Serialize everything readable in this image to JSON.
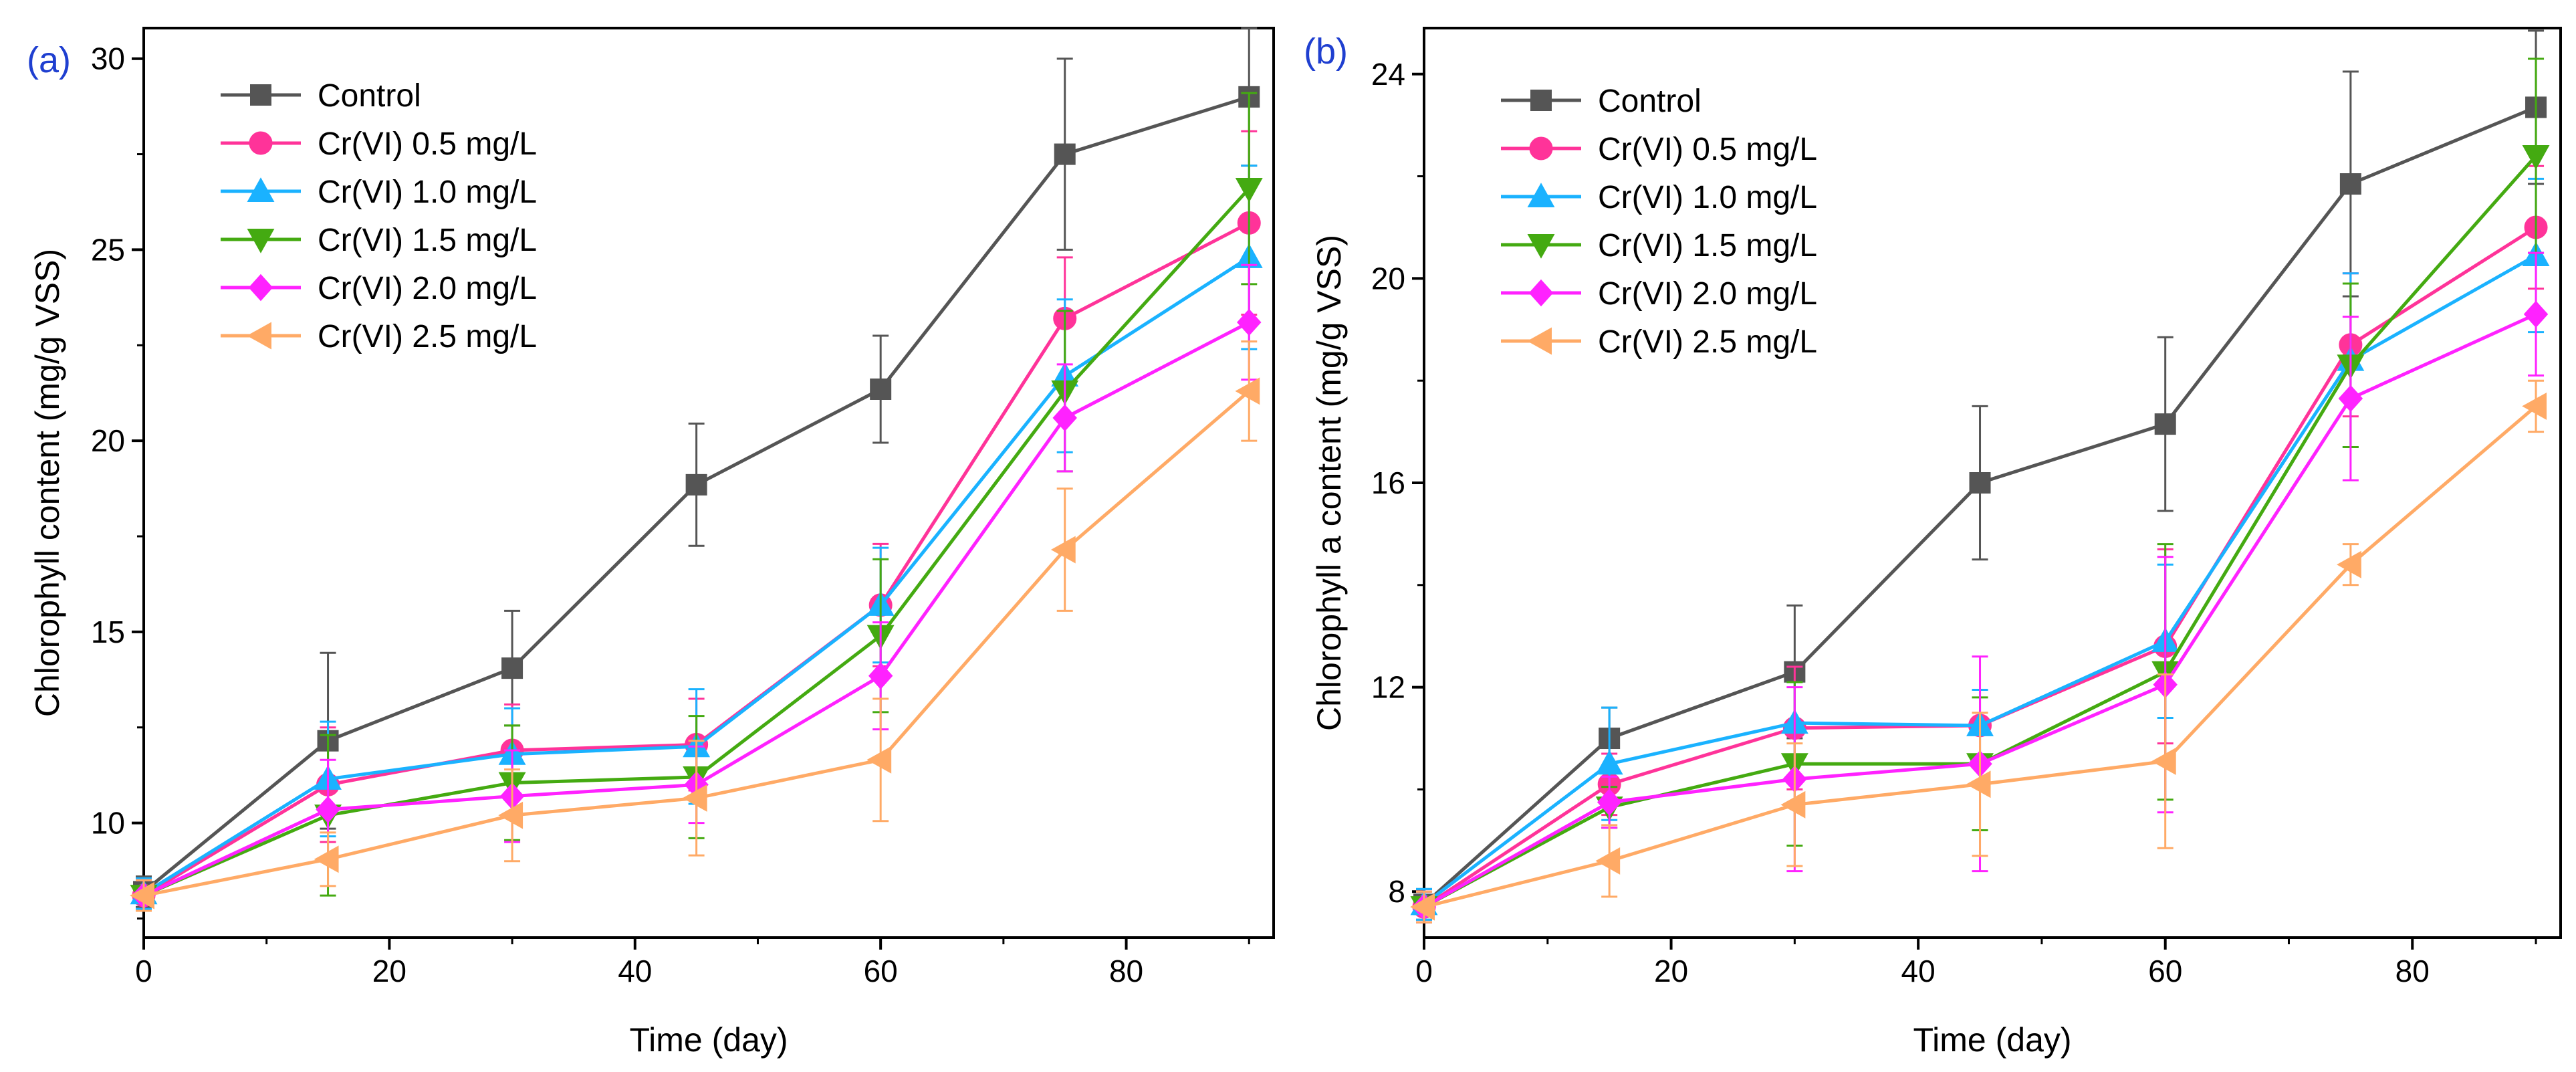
{
  "chart_data": [
    {
      "type": "line",
      "panel_label": "(a)",
      "title": "",
      "xlabel": "Time (day)",
      "ylabel": "Chlorophyll content (mg/g VSS)",
      "xlim": [
        0,
        92
      ],
      "ylim": [
        7,
        30.8
      ],
      "x_ticks": [
        0,
        20,
        40,
        60,
        80
      ],
      "x_tick_labels": [
        "0",
        "20",
        "40",
        "60",
        "80"
      ],
      "y_ticks": [
        10,
        15,
        20,
        25,
        30
      ],
      "y_tick_labels": [
        "10",
        "15",
        "20",
        "25",
        "30"
      ],
      "x": [
        0,
        15,
        30,
        45,
        60,
        75,
        90
      ],
      "legend_position": "top-left",
      "series": [
        {
          "name": "Control",
          "color": "#555555",
          "marker": "square",
          "values": [
            8.2,
            12.15,
            14.05,
            18.85,
            21.35,
            27.5,
            29.0
          ],
          "errors": [
            0.4,
            2.3,
            1.5,
            1.6,
            1.4,
            2.5,
            1.8
          ]
        },
        {
          "name": "Cr(VI) 0.5 mg/L",
          "color": "#ff3399",
          "marker": "circle",
          "values": [
            8.1,
            11.0,
            11.9,
            12.05,
            15.7,
            23.2,
            25.7
          ],
          "errors": [
            0.4,
            1.5,
            1.2,
            1.2,
            1.6,
            1.6,
            2.4
          ]
        },
        {
          "name": "Cr(VI) 1.0 mg/L",
          "color": "#1ab2ff",
          "marker": "triangle-up",
          "values": [
            8.15,
            11.15,
            11.8,
            12.0,
            15.7,
            21.7,
            24.8
          ],
          "errors": [
            0.4,
            1.5,
            1.2,
            1.5,
            1.5,
            2.0,
            2.4
          ]
        },
        {
          "name": "Cr(VI) 1.5 mg/L",
          "color": "#44aa11",
          "marker": "triangle-down",
          "values": [
            8.1,
            10.2,
            11.05,
            11.2,
            14.9,
            21.3,
            26.6
          ],
          "errors": [
            0.4,
            2.1,
            1.5,
            1.6,
            2.0,
            2.1,
            2.5
          ]
        },
        {
          "name": "Cr(VI) 2.0 mg/L",
          "color": "#ff22ff",
          "marker": "diamond",
          "values": [
            8.1,
            10.35,
            10.7,
            11.0,
            13.85,
            20.6,
            23.1
          ],
          "errors": [
            0.4,
            1.3,
            1.2,
            1.0,
            1.4,
            1.4,
            1.5
          ]
        },
        {
          "name": "Cr(VI) 2.5 mg/L",
          "color": "#ffaa66",
          "marker": "triangle-left",
          "values": [
            8.1,
            9.05,
            10.2,
            10.65,
            11.65,
            17.15,
            21.3
          ],
          "errors": [
            0.4,
            0.7,
            1.2,
            1.5,
            1.6,
            1.6,
            1.3
          ]
        }
      ]
    },
    {
      "type": "line",
      "panel_label": "(b)",
      "title": "",
      "xlabel": "Time (day)",
      "ylabel": "Chlorophyll a content (mg/g VSS)",
      "xlim": [
        0,
        92
      ],
      "ylim": [
        7.1,
        24.9
      ],
      "x_ticks": [
        0,
        20,
        40,
        60,
        80
      ],
      "x_tick_labels": [
        "0",
        "20",
        "40",
        "60",
        "80"
      ],
      "y_ticks": [
        8,
        12,
        16,
        20,
        24
      ],
      "y_tick_labels": [
        "8",
        "12",
        "16",
        "20",
        "24"
      ],
      "x": [
        0,
        15,
        30,
        45,
        60,
        75,
        90
      ],
      "legend_position": "top-left",
      "series": [
        {
          "name": "Control",
          "color": "#555555",
          "marker": "square",
          "values": [
            7.75,
            11.0,
            12.3,
            16.0,
            17.15,
            21.85,
            23.35
          ],
          "errors": [
            0.3,
            0.6,
            1.3,
            1.5,
            1.7,
            2.2,
            1.5
          ]
        },
        {
          "name": "Cr(VI) 0.5 mg/L",
          "color": "#ff3399",
          "marker": "circle",
          "values": [
            7.7,
            10.1,
            11.2,
            11.25,
            12.8,
            18.7,
            21.0
          ],
          "errors": [
            0.3,
            0.6,
            1.2,
            0.7,
            1.9,
            1.4,
            1.2
          ]
        },
        {
          "name": "Cr(VI) 1.0 mg/L",
          "color": "#1ab2ff",
          "marker": "triangle-up",
          "values": [
            7.75,
            10.5,
            11.3,
            11.25,
            12.9,
            18.4,
            20.45
          ],
          "errors": [
            0.3,
            1.1,
            0.8,
            0.7,
            1.5,
            1.7,
            1.5
          ]
        },
        {
          "name": "Cr(VI) 1.5 mg/L",
          "color": "#44aa11",
          "marker": "triangle-down",
          "values": [
            7.7,
            9.65,
            10.5,
            10.5,
            12.3,
            18.3,
            22.4
          ],
          "errors": [
            0.3,
            0.4,
            1.6,
            1.3,
            2.5,
            1.6,
            1.9
          ]
        },
        {
          "name": "Cr(VI) 2.0 mg/L",
          "color": "#ff22ff",
          "marker": "diamond",
          "values": [
            7.7,
            9.75,
            10.2,
            10.5,
            12.05,
            17.65,
            19.3
          ],
          "errors": [
            0.3,
            0.5,
            1.8,
            2.1,
            2.5,
            1.6,
            1.2
          ]
        },
        {
          "name": "Cr(VI) 2.5 mg/L",
          "color": "#ffaa66",
          "marker": "triangle-left",
          "values": [
            7.7,
            8.6,
            9.7,
            10.1,
            10.55,
            14.4,
            17.5
          ],
          "errors": [
            0.3,
            0.7,
            1.2,
            1.4,
            1.7,
            0.4,
            0.5
          ]
        }
      ]
    }
  ]
}
